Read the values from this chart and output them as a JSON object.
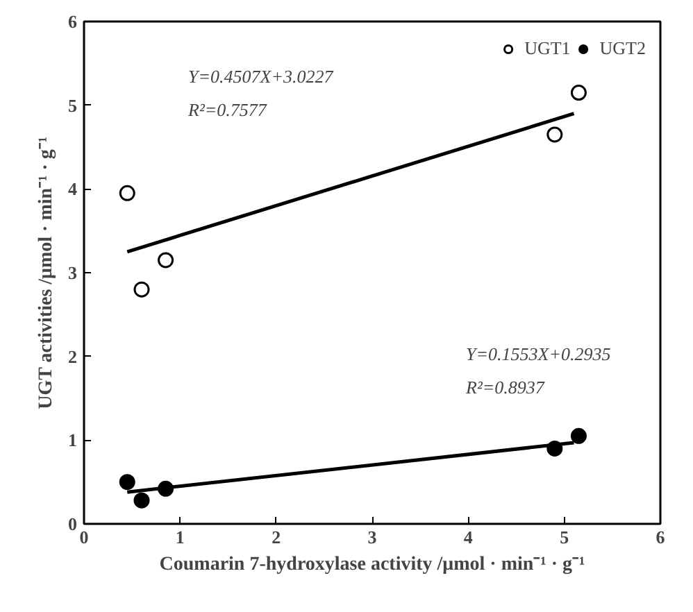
{
  "chart_data": {
    "type": "scatter",
    "xlabel": "Coumarin 7-hydroxylase activity /μmol · min⁻¹ · g⁻¹",
    "ylabel": "UGT activities /μmol · min⁻¹ · g⁻¹",
    "xlim": [
      0,
      6
    ],
    "ylim": [
      0,
      6
    ],
    "xticks": [
      0,
      1,
      2,
      3,
      4,
      5,
      6
    ],
    "yticks": [
      0,
      1,
      2,
      3,
      4,
      5,
      6
    ],
    "grid": false,
    "legend": "top right",
    "series": [
      {
        "name": "UGT1",
        "color": "#000000",
        "marker": "circle_open",
        "x": [
          0.45,
          0.6,
          0.85,
          4.9,
          5.15
        ],
        "values": [
          3.95,
          2.8,
          3.15,
          4.65,
          5.15
        ]
      },
      {
        "name": "UGT2",
        "color": "#000000",
        "marker": "circle",
        "x": [
          0.45,
          0.6,
          0.85,
          4.9,
          5.15
        ],
        "values": [
          0.5,
          0.28,
          0.42,
          0.9,
          1.05
        ]
      },
      {
        "type": "line",
        "color": "#000000",
        "x": [
          0.45,
          5.1
        ],
        "values": [
          3.25,
          4.9
        ]
      },
      {
        "type": "line",
        "color": "#000000",
        "x": [
          0.45,
          5.1
        ],
        "values": [
          0.38,
          0.97
        ]
      }
    ],
    "annotations": [
      "Y=0.4507X+3.0227",
      "R²=0.7577",
      "Y=0.1553X+0.2935",
      "R²=0.8937"
    ]
  }
}
